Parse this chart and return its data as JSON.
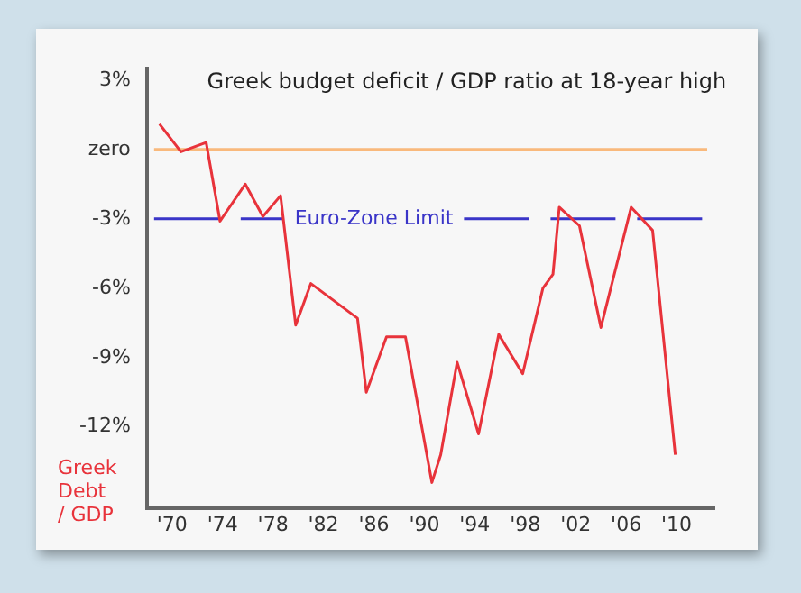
{
  "chart_data": {
    "type": "line",
    "title": "Greek budget deficit / GDP ratio at 18-year high",
    "ylabel": "Greek Debt / GDP",
    "x": [
      1969,
      1970.7,
      1972.7,
      1973.8,
      1975.8,
      1977.2,
      1978.6,
      1979.8,
      1981,
      1984.7,
      1985.4,
      1987,
      1988.5,
      1990.6,
      1991.3,
      1992.6,
      1994.3,
      1995.9,
      1997.8,
      1999.4,
      2000.2,
      2000.7,
      2002.3,
      2004,
      2006.4,
      2008.1,
      2009.9
    ],
    "series": [
      {
        "color": "#e8333b",
        "values": [
          1.1,
          -0.1,
          0.3,
          -3.1,
          -1.5,
          -2.9,
          -2.0,
          -7.6,
          -5.8,
          -7.3,
          -10.5,
          -8.1,
          -8.1,
          -14.4,
          -13.2,
          -9.2,
          -12.3,
          -8.0,
          -9.7,
          -6.0,
          -5.4,
          -2.5,
          -3.3,
          -7.7,
          -2.5,
          -3.5,
          -13.2
        ]
      }
    ],
    "xlim": [
      1968,
      2013
    ],
    "xticks": [
      {
        "value": 1970,
        "label": "'70"
      },
      {
        "value": 1974,
        "label": "'74"
      },
      {
        "value": 1978,
        "label": "'78"
      },
      {
        "value": 1982,
        "label": "'82"
      },
      {
        "value": 1986,
        "label": "'86"
      },
      {
        "value": 1990,
        "label": "'90"
      },
      {
        "value": 1994,
        "label": "'94"
      },
      {
        "value": 1998,
        "label": "'98"
      },
      {
        "value": 2002,
        "label": "'02"
      },
      {
        "value": 2006,
        "label": "'06"
      },
      {
        "value": 2010,
        "label": "'10"
      }
    ],
    "ylim": [
      -15.5,
      3.5
    ],
    "yticks": [
      {
        "value": 3,
        "label": "3%"
      },
      {
        "value": 0,
        "label": "zero"
      },
      {
        "value": -3,
        "label": "-3%"
      },
      {
        "value": -6,
        "label": "-6%"
      },
      {
        "value": -9,
        "label": "-9%"
      },
      {
        "value": -12,
        "label": "-12%"
      }
    ],
    "ref_lines": [
      {
        "axis": "y",
        "value": 0,
        "color": "#f9b97c",
        "line_style": "solid"
      },
      {
        "axis": "y",
        "value": -3,
        "label": "Euro-Zone Limit",
        "color": "#3a35c8",
        "line_style": "dashed"
      }
    ],
    "grid": false,
    "legend": false,
    "marker": "none",
    "line_style": "solid"
  }
}
